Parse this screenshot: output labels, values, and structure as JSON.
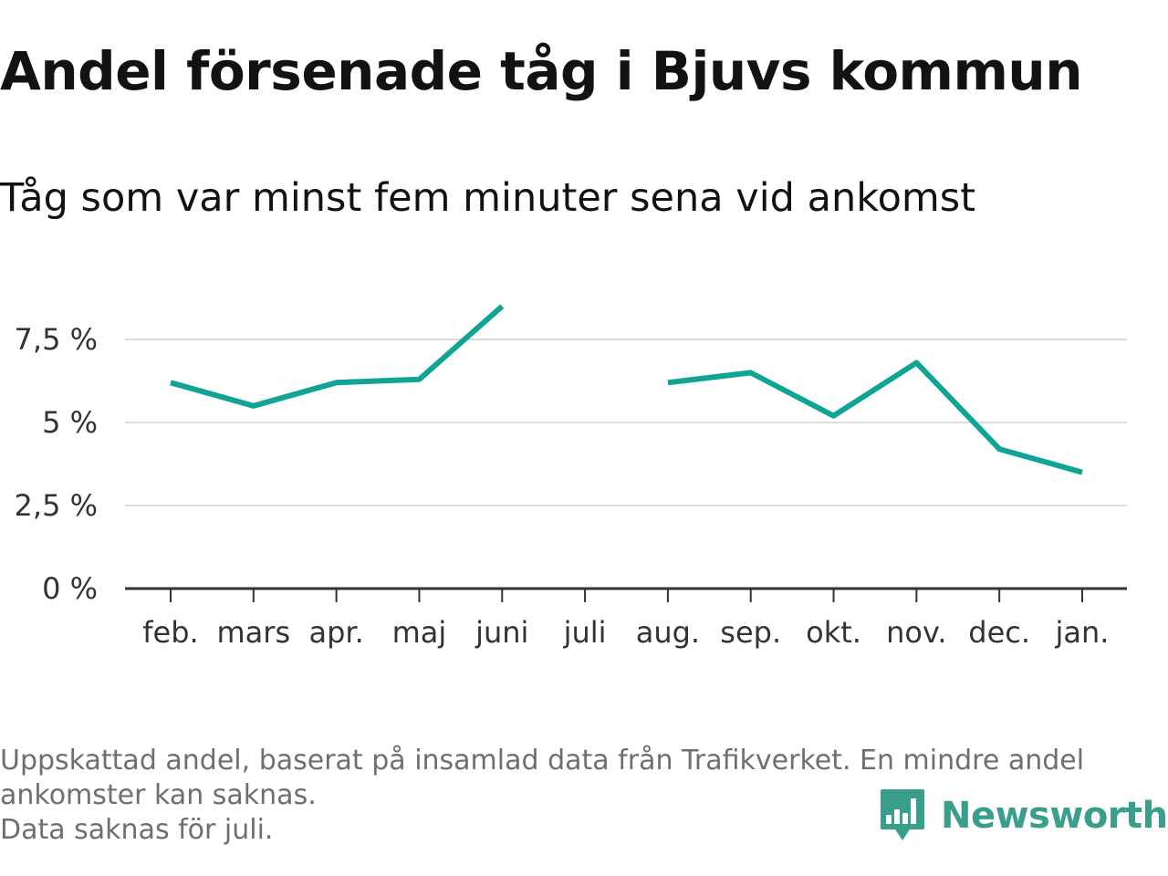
{
  "title": "Andel försenade tåg i Bjuvs kommun",
  "subtitle": "Tåg som var minst fem minuter sena vid ankomst",
  "footnote": {
    "line1": "Uppskattad andel, baserat på insamlad data från Trafikverket. En mindre andel",
    "line2": "ankomster kan saknas.",
    "line3": "Data saknas för juli."
  },
  "logo": {
    "text": "Newsworthy",
    "icon": "newsworthy-bar-chart-icon",
    "color": "#3a9e8c"
  },
  "chart_data": {
    "type": "line",
    "categories": [
      "feb.",
      "mars",
      "apr.",
      "maj",
      "juni",
      "juli",
      "aug.",
      "sep.",
      "okt.",
      "nov.",
      "dec.",
      "jan."
    ],
    "series": [
      {
        "values": [
          6.2,
          5.5,
          6.2,
          6.3,
          8.5,
          null,
          6.2,
          6.5,
          5.2,
          6.8,
          4.2,
          3.5
        ],
        "color": "#0fa494"
      }
    ],
    "yticks": [
      0,
      2.5,
      5,
      7.5
    ],
    "ytick_labels": [
      "0 %",
      "2,5 %",
      "5 %",
      "7,5 %"
    ],
    "ylim": [
      0,
      9
    ],
    "xlabel": "",
    "ylabel": "",
    "grid": true,
    "legend": "none"
  }
}
